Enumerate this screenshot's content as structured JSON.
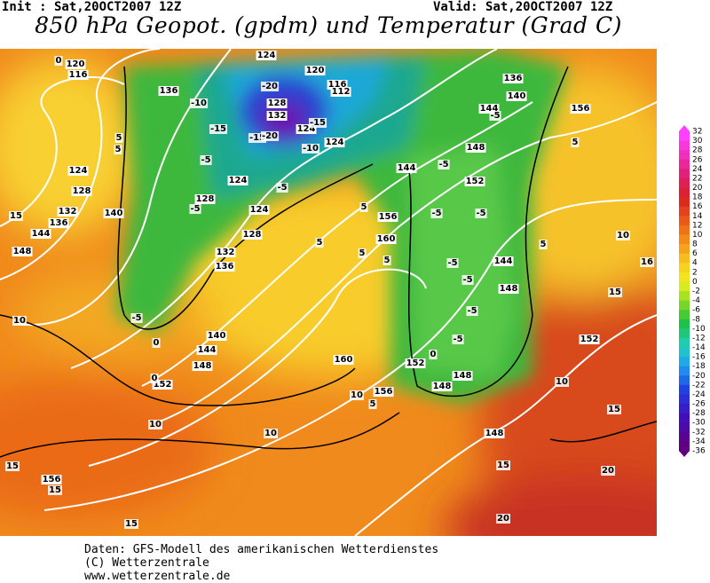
{
  "header": {
    "init": "Init : Sat,20OCT2007 12Z",
    "valid": "Valid: Sat,20OCT2007 12Z",
    "title": "850 hPa Geopot. (gpdm) und Temperatur (Grad C)"
  },
  "geopotential_labels": [
    "120",
    "116",
    "124",
    "128",
    "132",
    "136",
    "144",
    "148",
    "140",
    "136",
    "124",
    "120",
    "116",
    "112",
    "128",
    "132",
    "124",
    "124",
    "124",
    "124",
    "128",
    "128",
    "132",
    "136",
    "140",
    "144",
    "148",
    "152",
    "156",
    "160",
    "156",
    "144",
    "152",
    "148",
    "144",
    "140",
    "136",
    "156",
    "144",
    "148",
    "152",
    "160",
    "152",
    "148",
    "148",
    "156",
    "148"
  ],
  "temperature_labels": [
    "0",
    "5",
    "5",
    "10",
    "10",
    "10",
    "15",
    "15",
    "15",
    "15",
    "-5",
    "0",
    "0",
    "-10",
    "-15",
    "-20",
    "-15",
    "-20",
    "-10",
    "-5",
    "-5",
    "-5",
    "5",
    "5",
    "5",
    "5",
    "0",
    "-5",
    "-5",
    "-5",
    "-5",
    "-5",
    "-5",
    "-5",
    "-5",
    "5",
    "5",
    "10",
    "10",
    "15",
    "15",
    "20",
    "20",
    "10",
    "5",
    "15",
    "16",
    "-15"
  ],
  "color_scale": {
    "ticks": [
      "32",
      "30",
      "28",
      "26",
      "24",
      "22",
      "20",
      "18",
      "16",
      "14",
      "12",
      "10",
      "8",
      "6",
      "4",
      "2",
      "0",
      "-2",
      "-4",
      "-6",
      "-8",
      "-10",
      "-12",
      "-14",
      "-16",
      "-18",
      "-20",
      "-22",
      "-24",
      "-26",
      "-28",
      "-30",
      "-32",
      "-34",
      "-36"
    ]
  },
  "footer": {
    "source": "Daten: GFS-Modell des amerikanischen Wetterdienstes",
    "copyright": "(C) Wetterzentrale",
    "url": "www.wetterzentrale.de"
  }
}
